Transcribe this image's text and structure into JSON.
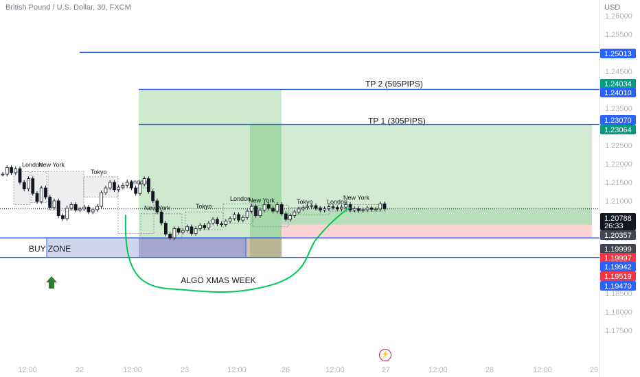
{
  "symbol_title": "British Pound / U.S. Dollar, 30, FXCM",
  "price_unit": "USD",
  "colors": {
    "up": "#26a69a",
    "down": "#ef5350",
    "candle": "#131722",
    "line_blue": "#2962ff",
    "tp_green": "#4caf50",
    "stop_red": "#ef5350",
    "purple": "#9575cd",
    "algo_line": "#00c853"
  },
  "chart_data": {
    "type": "candlestick",
    "title": "British Pound / U.S. Dollar, 30, FXCM",
    "ylim": [
      1.172,
      1.263
    ],
    "y_ticks": [
      "1.26000",
      "1.25500",
      "1.25000",
      "1.24500",
      "1.24000",
      "1.23500",
      "1.23000",
      "1.22500",
      "1.22000",
      "1.21500",
      "1.21000",
      "1.20500",
      "1.20000",
      "1.19500",
      "1.19000",
      "1.18500",
      "1.18000",
      "1.17500"
    ],
    "x_ticks": [
      "12:00",
      "22",
      "12:00",
      "23",
      "12:00",
      "26",
      "12:00",
      "27",
      "12:00",
      "28",
      "12:00",
      "29"
    ],
    "price_labels": [
      {
        "value": "1.25013",
        "color": "#2962ff"
      },
      {
        "value": "1.24034",
        "color": "#089981"
      },
      {
        "value": "1.24010",
        "color": "#2962ff"
      },
      {
        "value": "1.23070",
        "color": "#2962ff"
      },
      {
        "value": "1.23064",
        "color": "#089981"
      },
      {
        "value": "1.20788",
        "color": "#131722"
      },
      {
        "value": "26:33",
        "color": "#131722"
      },
      {
        "value": "1.20357",
        "color": "#434651"
      },
      {
        "value": "1.19999",
        "color": "#434651"
      },
      {
        "value": "1.19997",
        "color": "#f23645"
      },
      {
        "value": "1.19942",
        "color": "#2962ff"
      },
      {
        "value": "1.19519",
        "color": "#f23645"
      },
      {
        "value": "1.19470",
        "color": "#2962ff"
      }
    ],
    "annotations": {
      "tp2": "TP 2 (505PIPS)",
      "tp1": "TP 1 (305PIPS)",
      "buy_zone": "BUY ZONE",
      "algo": "ALGO XMAS WEEK"
    },
    "sessions": [
      "London",
      "New York",
      "Tokyo",
      "London",
      "New York",
      "Tokyo",
      "London",
      "New York",
      "Tokyo",
      "London",
      "New York"
    ],
    "series": [
      {
        "values": [
          1.2172,
          1.219,
          1.2176,
          1.2187,
          1.215,
          1.2132,
          1.216,
          1.212,
          1.2098,
          1.2135,
          1.211,
          1.2082,
          1.21,
          1.206,
          1.2052,
          1.208,
          1.209,
          1.2075,
          1.2078,
          1.2083,
          1.207,
          1.2076,
          1.2085,
          1.2122,
          1.2135,
          1.215,
          1.213,
          1.2137,
          1.2142,
          1.215,
          1.2135,
          1.212,
          1.2145,
          1.216,
          1.2125,
          1.21,
          1.207,
          1.204,
          1.201,
          1.2,
          1.2025,
          1.2015,
          1.202,
          1.203,
          1.2012,
          1.2025,
          1.2034,
          1.2027,
          1.204,
          1.205,
          1.2038,
          1.2036,
          1.2045,
          1.2052,
          1.2063,
          1.2048,
          1.2055,
          1.2072,
          1.2085,
          1.206,
          1.2075,
          1.209,
          1.208,
          1.2072,
          1.209,
          1.2065,
          1.205,
          1.206,
          1.207,
          1.2078,
          1.2082,
          1.2085,
          1.2087,
          1.208,
          1.2075,
          1.2079,
          1.2084,
          1.2082,
          1.2078,
          1.2083,
          1.209,
          1.2075,
          1.2079,
          1.2074,
          1.2076,
          1.2081,
          1.2077,
          1.2078,
          1.2092,
          1.2079
        ]
      }
    ]
  }
}
